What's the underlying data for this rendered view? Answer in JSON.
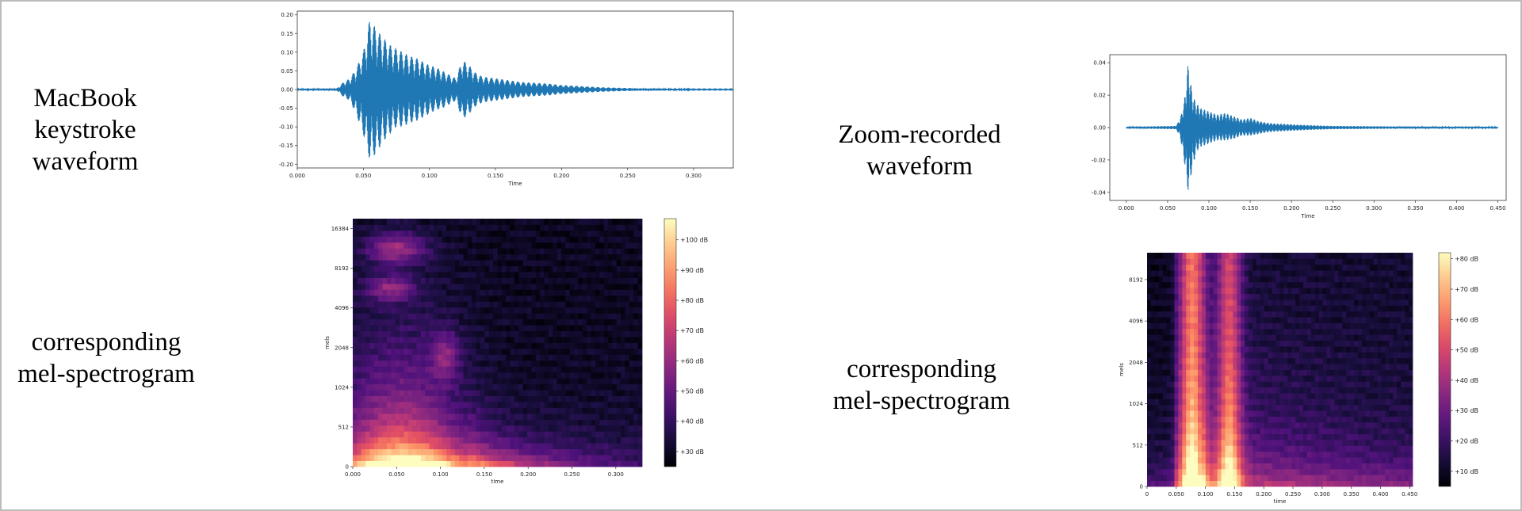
{
  "captions": {
    "macbook_waveform": [
      "MacBook keystroke",
      "waveform"
    ],
    "macbook_spectrogram": [
      "corresponding",
      "mel-spectrogram"
    ],
    "zoom_waveform": [
      "Zoom-recorded",
      "waveform"
    ],
    "zoom_spectrogram": [
      "corresponding",
      "mel-spectrogram"
    ]
  },
  "colors": {
    "waveform": "#1f77b4",
    "colormap": "magma"
  },
  "chart_data": [
    {
      "id": "macbook-waveform",
      "type": "line",
      "title": "",
      "xlabel": "Time",
      "ylabel": "",
      "xlim": [
        0,
        0.33
      ],
      "ylim": [
        -0.21,
        0.21
      ],
      "xticks": [
        "0.000",
        "0.050",
        "0.100",
        "0.150",
        "0.200",
        "0.250",
        "0.300"
      ],
      "yticks": [
        "-0.20",
        "-0.15",
        "-0.10",
        "-0.05",
        "0.00",
        "0.05",
        "0.10",
        "0.15",
        "0.20"
      ],
      "x_tick_values": [
        0,
        0.05,
        0.1,
        0.15,
        0.2,
        0.25,
        0.3
      ],
      "y_tick_values": [
        -0.2,
        -0.15,
        -0.1,
        -0.05,
        0,
        0.05,
        0.1,
        0.15,
        0.2
      ],
      "envelope": {
        "x": [
          0,
          0.03,
          0.035,
          0.04,
          0.045,
          0.05,
          0.055,
          0.06,
          0.065,
          0.07,
          0.075,
          0.08,
          0.085,
          0.09,
          0.095,
          0.1,
          0.105,
          0.11,
          0.115,
          0.12,
          0.125,
          0.13,
          0.135,
          0.14,
          0.15,
          0.16,
          0.17,
          0.18,
          0.19,
          0.2,
          0.21,
          0.22,
          0.23,
          0.24,
          0.25,
          0.26,
          0.27,
          0.28,
          0.29,
          0.3,
          0.33
        ],
        "upper": [
          0.002,
          0.003,
          0.02,
          0.03,
          0.06,
          0.1,
          0.19,
          0.16,
          0.14,
          0.12,
          0.11,
          0.1,
          0.09,
          0.085,
          0.075,
          0.065,
          0.06,
          0.05,
          0.04,
          0.03,
          0.08,
          0.065,
          0.045,
          0.035,
          0.03,
          0.025,
          0.02,
          0.018,
          0.016,
          0.012,
          0.01,
          0.008,
          0.006,
          0.005,
          0.004,
          0.003,
          0.003,
          0.002,
          0.002,
          0.001,
          0.001
        ],
        "lower": [
          -0.002,
          -0.003,
          -0.02,
          -0.03,
          -0.07,
          -0.12,
          -0.19,
          -0.17,
          -0.14,
          -0.12,
          -0.1,
          -0.1,
          -0.09,
          -0.085,
          -0.075,
          -0.065,
          -0.055,
          -0.05,
          -0.04,
          -0.03,
          -0.08,
          -0.065,
          -0.045,
          -0.035,
          -0.03,
          -0.025,
          -0.02,
          -0.018,
          -0.016,
          -0.012,
          -0.01,
          -0.008,
          -0.006,
          -0.005,
          -0.004,
          -0.003,
          -0.003,
          -0.002,
          -0.002,
          -0.001,
          -0.001
        ]
      }
    },
    {
      "id": "macbook-mel-spectrogram",
      "type": "heatmap",
      "title": "",
      "xlabel": "time",
      "ylabel": "mels",
      "xlim": [
        0,
        0.33
      ],
      "xticks": [
        "0.000",
        "0.050",
        "0.100",
        "0.150",
        "0.200",
        "0.250",
        "0.300"
      ],
      "x_tick_values": [
        0,
        0.05,
        0.1,
        0.15,
        0.2,
        0.25,
        0.3
      ],
      "yticks": [
        "0",
        "512",
        "1024",
        "2048",
        "4096",
        "8192",
        "16384"
      ],
      "colorbar_ticks": [
        "+30 dB",
        "+40 dB",
        "+50 dB",
        "+60 dB",
        "+70 dB",
        "+80 dB",
        "+90 dB",
        "+100 dB"
      ],
      "colorbar_values": [
        30,
        40,
        50,
        60,
        70,
        80,
        90,
        100
      ],
      "colorbar_range": [
        25,
        107
      ],
      "energy_pattern": "strong low-frequency energy 0.01–0.15 s, decaying toward higher frequencies and later times"
    },
    {
      "id": "zoom-waveform",
      "type": "line",
      "title": "",
      "xlabel": "Time",
      "ylabel": "",
      "xlim": [
        -0.02,
        0.46
      ],
      "ylim": [
        -0.045,
        0.045
      ],
      "xticks": [
        "0.000",
        "0.050",
        "0.100",
        "0.150",
        "0.200",
        "0.250",
        "0.300",
        "0.350",
        "0.400",
        "0.450"
      ],
      "yticks": [
        "-0.04",
        "-0.02",
        "0.00",
        "0.02",
        "0.04"
      ],
      "x_tick_values": [
        0,
        0.05,
        0.1,
        0.15,
        0.2,
        0.25,
        0.3,
        0.35,
        0.4,
        0.45
      ],
      "y_tick_values": [
        -0.04,
        -0.02,
        0,
        0.02,
        0.04
      ],
      "envelope": {
        "x": [
          0,
          0.06,
          0.065,
          0.07,
          0.075,
          0.08,
          0.085,
          0.09,
          0.1,
          0.11,
          0.12,
          0.13,
          0.14,
          0.15,
          0.16,
          0.17,
          0.18,
          0.2,
          0.22,
          0.25,
          0.3,
          0.35,
          0.4,
          0.45
        ],
        "upper": [
          0.0005,
          0.001,
          0.005,
          0.015,
          0.04,
          0.02,
          0.015,
          0.012,
          0.01,
          0.008,
          0.009,
          0.007,
          0.005,
          0.006,
          0.004,
          0.003,
          0.0025,
          0.002,
          0.0015,
          0.001,
          0.0008,
          0.0006,
          0.0005,
          0.0004
        ],
        "lower": [
          -0.0005,
          -0.001,
          -0.005,
          -0.02,
          -0.04,
          -0.025,
          -0.015,
          -0.012,
          -0.01,
          -0.008,
          -0.008,
          -0.007,
          -0.005,
          -0.005,
          -0.004,
          -0.003,
          -0.0025,
          -0.002,
          -0.0015,
          -0.001,
          -0.0008,
          -0.0006,
          -0.0005,
          -0.0004
        ]
      }
    },
    {
      "id": "zoom-mel-spectrogram",
      "type": "heatmap",
      "title": "",
      "xlabel": "time",
      "ylabel": "mels",
      "xlim": [
        0,
        0.455
      ],
      "xticks": [
        "0",
        "0.050",
        "0.100",
        "0.150",
        "0.200",
        "0.250",
        "0.300",
        "0.350",
        "0.400",
        "0.450"
      ],
      "x_tick_values": [
        0,
        0.05,
        0.1,
        0.15,
        0.2,
        0.25,
        0.3,
        0.35,
        0.4,
        0.45
      ],
      "yticks": [
        "0",
        "512",
        "1024",
        "2048",
        "4096",
        "8192"
      ],
      "colorbar_ticks": [
        "+10 dB",
        "+20 dB",
        "+30 dB",
        "+40 dB",
        "+50 dB",
        "+60 dB",
        "+70 dB",
        "+80 dB"
      ],
      "colorbar_values": [
        10,
        20,
        30,
        40,
        50,
        60,
        70,
        80
      ],
      "colorbar_range": [
        5,
        82
      ],
      "energy_pattern": "bright bands around 0.05–0.08 s and 0.12–0.17 s across all frequencies, moderate energy afterwards"
    }
  ]
}
